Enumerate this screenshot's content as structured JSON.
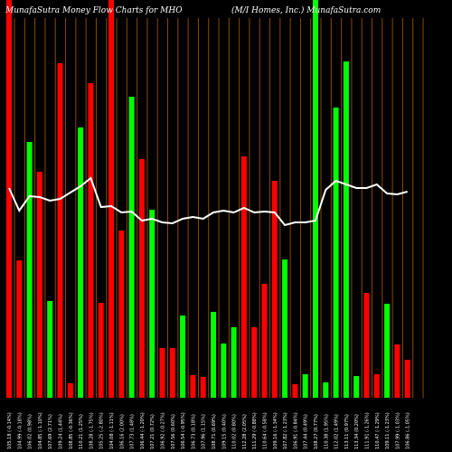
{
  "chart_data": {
    "type": "bar",
    "title_left": "MunafaSutra  Money Flow  Charts for MHO",
    "title_right": "(M/I Homes, Inc.) MunafaSutra.com",
    "ylim": [
      0,
      440
    ],
    "categories": [
      "105.18 (-0.14%)",
      "104.99 (-0.18%)",
      "106.02 (0.98%)",
      "104.85 (-1.10%)",
      "107.69 (2.71%)",
      "109.24 (1.44%)",
      "108.85 (-0.36%)",
      "110.21 (1.25%)",
      "108.28 (-1.75%)",
      "105.25 (-2.80%)",
      "104.08 (-1.11%)",
      "106.16 (2.00%)",
      "107.73 (1.48%)",
      "106.44 (-1.20%)",
      "107.21 (0.72%)",
      "106.92 (-0.27%)",
      "107.56 (0.60%)",
      "106.54 (-0.95%)",
      "106.73 (0.18%)",
      "107.96 (1.15%)",
      "108.71 (0.69%)",
      "109.15 (0.40%)",
      "110.02 (0.80%)",
      "112.28 (2.05%)",
      "111.29 (-0.88%)",
      "110.64 (-0.58%)",
      "109.16 (-1.34%)",
      "107.82 (-1.23%)",
      "106.91 (-0.84%)",
      "107.44 (0.49%)",
      "108.27 (0.77%)",
      "110.38 (1.95%)",
      "112.02 (1.49%)",
      "113.11 (0.97%)",
      "113.34 (0.20%)",
      "111.91 (-1.26%)",
      "110.47 (-1.29%)",
      "109.11 (-1.23%)",
      "107.99 (-1.03%)",
      "106.86 (-1.05%)"
    ],
    "values": [
      440,
      152,
      283,
      250,
      107,
      370,
      16,
      299,
      348,
      105,
      440,
      185,
      333,
      264,
      208,
      55,
      55,
      91,
      25,
      23,
      95,
      60,
      78,
      267,
      78,
      126,
      240,
      153,
      15,
      26,
      440,
      17,
      321,
      372,
      24,
      116,
      26,
      104,
      59,
      42
    ],
    "colors": [
      "red",
      "red",
      "green",
      "red",
      "green",
      "red",
      "red",
      "green",
      "red",
      "red",
      "red",
      "red",
      "green",
      "red",
      "green",
      "red",
      "red",
      "green",
      "red",
      "red",
      "green",
      "green",
      "green",
      "red",
      "red",
      "red",
      "red",
      "green",
      "red",
      "green",
      "green",
      "green",
      "green",
      "green",
      "green",
      "red",
      "red",
      "green",
      "red",
      "red"
    ],
    "line": [
      232,
      207,
      223,
      222,
      218,
      220,
      227,
      234,
      243,
      211,
      212,
      205,
      206,
      196,
      198,
      194,
      193,
      198,
      200,
      198,
      205,
      207,
      205,
      210,
      205,
      206,
      205,
      191,
      194,
      194,
      196,
      230,
      240,
      236,
      232,
      232,
      236,
      226,
      225,
      228
    ],
    "line_range": [
      0,
      440
    ],
    "grid": true,
    "grid_color": "#8a4a00",
    "palette": {
      "red": "#ff0000",
      "green": "#00ff00",
      "line": "#ffffff",
      "background": "#000000"
    }
  }
}
